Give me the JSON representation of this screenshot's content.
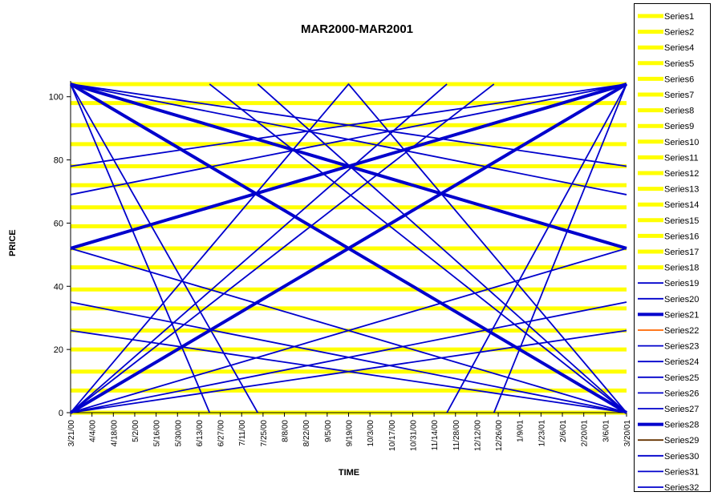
{
  "chart_data": {
    "type": "line",
    "title": "MAR2000-MAR2001",
    "xlabel": "TIME",
    "ylabel": "PRICE",
    "ylim": [
      0,
      105
    ],
    "y_ticks": [
      0,
      20,
      40,
      60,
      80,
      100
    ],
    "categories": [
      "3/21/00",
      "4/4/00",
      "4/18/00",
      "5/2/00",
      "5/16/00",
      "5/30/00",
      "6/13/00",
      "6/27/00",
      "7/11/00",
      "7/25/00",
      "8/8/00",
      "8/22/00",
      "9/5/00",
      "9/19/00",
      "10/3/00",
      "10/17/00",
      "10/31/00",
      "11/14/00",
      "11/28/00",
      "12/12/00",
      "12/26/00",
      "1/9/01",
      "1/23/01",
      "2/6/01",
      "2/20/01",
      "3/6/01",
      "3/20/01"
    ],
    "horizontal_levels": [
      0,
      7,
      13,
      20,
      26,
      33,
      39,
      46,
      52,
      59,
      65,
      72,
      78,
      85,
      91,
      98,
      104
    ],
    "colors": {
      "yellow": "#ffff00",
      "blue": "#0000cc",
      "orange": "#ff6600",
      "brown": "#663300"
    },
    "series": [
      {
        "name": "Series21",
        "x": [
          0,
          26
        ],
        "values": [
          0,
          104
        ]
      },
      {
        "name": "Series28",
        "x": [
          0,
          26
        ],
        "values": [
          104,
          0
        ]
      },
      {
        "x": [
          0,
          26
        ],
        "values": [
          52,
          104
        ]
      },
      {
        "x": [
          0,
          26
        ],
        "values": [
          104,
          52
        ]
      },
      {
        "x": [
          0,
          26
        ],
        "values": [
          0,
          52
        ]
      },
      {
        "x": [
          0,
          26
        ],
        "values": [
          52,
          0
        ]
      },
      {
        "x": [
          0,
          13,
          26
        ],
        "values": [
          0,
          104,
          0
        ]
      },
      {
        "x": [
          0,
          6.5
        ],
        "values": [
          104,
          0
        ]
      },
      {
        "x": [
          0,
          8.75
        ],
        "values": [
          104,
          0
        ]
      },
      {
        "x": [
          6.5,
          26
        ],
        "values": [
          104,
          0
        ]
      },
      {
        "x": [
          8.75,
          26
        ],
        "values": [
          104,
          0
        ]
      },
      {
        "x": [
          0,
          17.6
        ],
        "values": [
          0,
          104
        ]
      },
      {
        "x": [
          0,
          19.8
        ],
        "values": [
          0,
          104
        ]
      },
      {
        "x": [
          17.6,
          26
        ],
        "values": [
          0,
          104
        ]
      },
      {
        "x": [
          19.8,
          26
        ],
        "values": [
          0,
          104
        ]
      },
      {
        "x": [
          0,
          26
        ],
        "values": [
          0,
          35
        ]
      },
      {
        "x": [
          0,
          26
        ],
        "values": [
          0,
          26
        ]
      },
      {
        "x": [
          0,
          26
        ],
        "values": [
          26,
          0
        ]
      },
      {
        "x": [
          0,
          26
        ],
        "values": [
          35,
          0
        ]
      },
      {
        "x": [
          0,
          26
        ],
        "values": [
          104,
          78
        ]
      },
      {
        "x": [
          0,
          26
        ],
        "values": [
          104,
          69
        ]
      },
      {
        "x": [
          0,
          26
        ],
        "values": [
          78,
          104
        ]
      },
      {
        "x": [
          0,
          26
        ],
        "values": [
          69,
          104
        ]
      }
    ]
  },
  "legend": {
    "entries": [
      {
        "label": "Series1",
        "style": "yellow"
      },
      {
        "label": "Series2",
        "style": "yellow"
      },
      {
        "label": "Series4",
        "style": "yellow"
      },
      {
        "label": "Series5",
        "style": "yellow"
      },
      {
        "label": "Series6",
        "style": "yellow"
      },
      {
        "label": "Series7",
        "style": "yellow"
      },
      {
        "label": "Series8",
        "style": "yellow"
      },
      {
        "label": "Series9",
        "style": "yellow"
      },
      {
        "label": "Series10",
        "style": "yellow"
      },
      {
        "label": "Series11",
        "style": "yellow"
      },
      {
        "label": "Series12",
        "style": "yellow"
      },
      {
        "label": "Series13",
        "style": "yellow"
      },
      {
        "label": "Series14",
        "style": "yellow"
      },
      {
        "label": "Series15",
        "style": "yellow"
      },
      {
        "label": "Series16",
        "style": "yellow"
      },
      {
        "label": "Series17",
        "style": "yellow"
      },
      {
        "label": "Series18",
        "style": "yellow"
      },
      {
        "label": "Series19",
        "style": "blue"
      },
      {
        "label": "Series20",
        "style": "blue"
      },
      {
        "label": "Series21",
        "style": "blue-thick"
      },
      {
        "label": "Series22",
        "style": "orange"
      },
      {
        "label": "Series23",
        "style": "blue"
      },
      {
        "label": "Series24",
        "style": "blue"
      },
      {
        "label": "Series25",
        "style": "blue"
      },
      {
        "label": "Series26",
        "style": "blue"
      },
      {
        "label": "Series27",
        "style": "blue"
      },
      {
        "label": "Series28",
        "style": "blue-thick"
      },
      {
        "label": "Series29",
        "style": "brown"
      },
      {
        "label": "Series30",
        "style": "blue"
      },
      {
        "label": "Series31",
        "style": "blue"
      },
      {
        "label": "Series32",
        "style": "blue"
      }
    ]
  }
}
